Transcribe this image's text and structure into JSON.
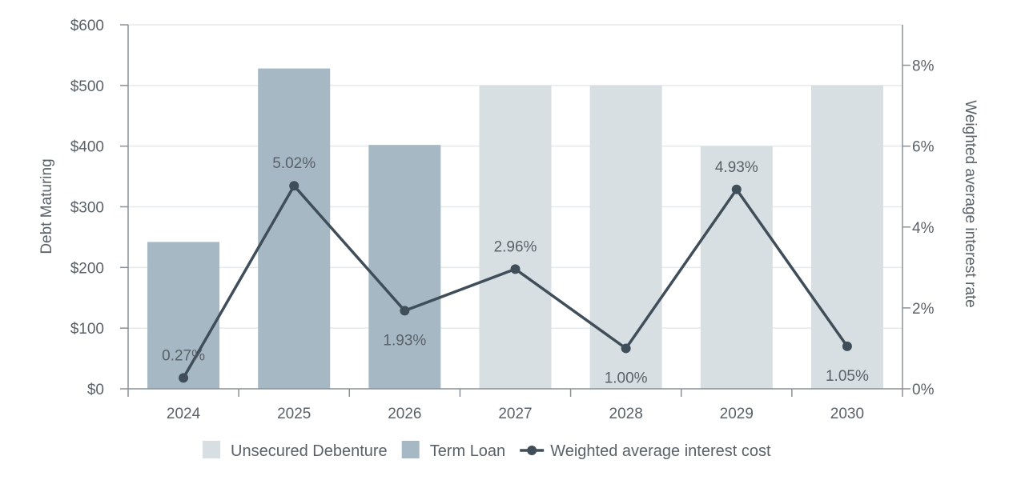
{
  "chart_data": {
    "type": "bar",
    "title": "",
    "categories": [
      "2024",
      "2025",
      "2026",
      "2027",
      "2028",
      "2029",
      "2030"
    ],
    "series": [
      {
        "name": "Unsecured Debenture",
        "chart": "bar",
        "axis": "left",
        "color": "#d7dfe2",
        "values": [
          0,
          0,
          0,
          500,
          500,
          400,
          500
        ]
      },
      {
        "name": "Term Loan",
        "chart": "bar",
        "axis": "left",
        "color": "#a5b8c4",
        "values": [
          242,
          528,
          402,
          0,
          0,
          0,
          0
        ]
      },
      {
        "name": "Weighted average interest cost",
        "chart": "line",
        "axis": "right",
        "color": "#404e5a",
        "values": [
          0.27,
          5.02,
          1.93,
          2.96,
          1.0,
          4.93,
          1.05
        ],
        "labels": [
          "0.27%",
          "5.02%",
          "1.93%",
          "2.96%",
          "1.00%",
          "4.93%",
          "1.05%"
        ]
      }
    ],
    "left_axis": {
      "label": "Debt Maturing",
      "range": [
        0,
        600
      ],
      "ticks": [
        0,
        100,
        200,
        300,
        400,
        500,
        600
      ],
      "tick_labels": [
        "$0",
        "$100",
        "$200",
        "$300",
        "$400",
        "$500",
        "$600"
      ]
    },
    "right_axis": {
      "label": "Weighted average interest rate",
      "range": [
        0,
        9
      ],
      "ticks": [
        0,
        2,
        4,
        6,
        8
      ],
      "tick_labels": [
        "0%",
        "2%",
        "4%",
        "6%",
        "8%"
      ]
    },
    "grid": true,
    "legend_position": "bottom",
    "colors": {
      "axis": "#8a9096",
      "grid": "#e6e9eb",
      "text": "#5a6168"
    }
  }
}
